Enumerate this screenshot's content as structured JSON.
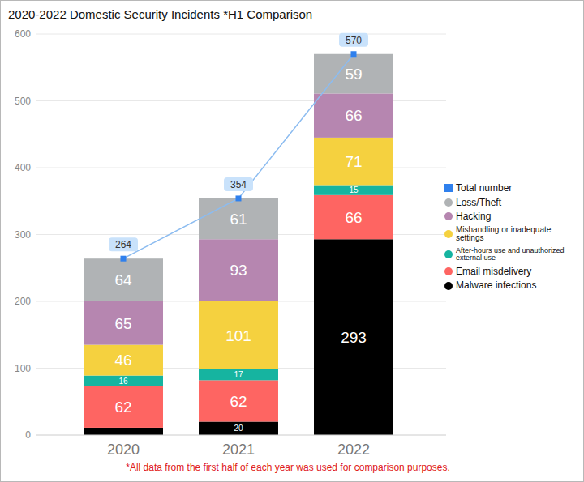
{
  "chart_data": {
    "type": "bar",
    "title": "2020-2022 Domestic Security Incidents *H1 Comparison",
    "annotations": [
      "*All data from the first half of each year was used for comparison purposes."
    ],
    "categories": [
      "2020",
      "2021",
      "2022"
    ],
    "stacked": true,
    "data_labels": true,
    "grid": true,
    "legend": "right",
    "ylim": [
      0,
      600
    ],
    "yticks": [
      0,
      100,
      200,
      300,
      400,
      500,
      600
    ],
    "series": [
      {
        "name": "Malware infections",
        "color": "#000000",
        "values": [
          11,
          20,
          293
        ],
        "value_labels": [
          null,
          "20",
          "293"
        ]
      },
      {
        "name": "Email misdelivery",
        "color": "#fe6562",
        "values": [
          62,
          62,
          66
        ]
      },
      {
        "name": "After-hours use and unauthorized external use",
        "color": "#16b4a0",
        "values": [
          16,
          17,
          15
        ]
      },
      {
        "name": "Mishandling or inadequate settings",
        "color": "#f5d13f",
        "values": [
          46,
          101,
          71
        ]
      },
      {
        "name": "Hacking",
        "color": "#b686b0",
        "values": [
          65,
          93,
          66
        ]
      },
      {
        "name": "Loss/Theft",
        "color": "#b0b3b5",
        "values": [
          64,
          61,
          59
        ]
      },
      {
        "name": "Total number",
        "type": "line",
        "color": "#2f80ed",
        "marker": "square",
        "values": [
          264,
          354,
          570
        ]
      }
    ]
  }
}
